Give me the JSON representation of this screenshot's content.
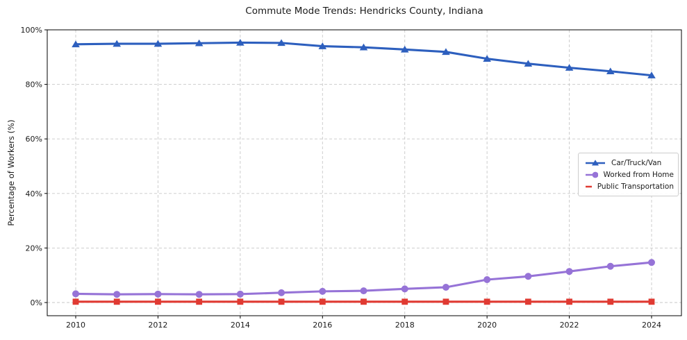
{
  "chart_data": {
    "type": "line",
    "title": "Commute Mode Trends: Hendricks County, Indiana",
    "xlabel": "",
    "ylabel": "Percentage of Workers (%)",
    "x": [
      2010,
      2011,
      2012,
      2013,
      2014,
      2015,
      2016,
      2017,
      2018,
      2019,
      2020,
      2021,
      2022,
      2023,
      2024
    ],
    "series": [
      {
        "name": "Car/Truck/Van",
        "color": "#2d5fbe",
        "marker": "triangle-up",
        "values": [
          94.7,
          94.9,
          94.9,
          95.1,
          95.3,
          95.2,
          94.0,
          93.6,
          92.8,
          91.9,
          89.4,
          87.6,
          86.1,
          84.8,
          83.3
        ]
      },
      {
        "name": "Worked from Home",
        "color": "#9673d7",
        "marker": "circle",
        "values": [
          3.2,
          3.0,
          3.1,
          3.0,
          3.1,
          3.6,
          4.1,
          4.3,
          5.0,
          5.6,
          8.4,
          9.6,
          11.4,
          13.3,
          14.7
        ]
      },
      {
        "name": "Public Transportation",
        "color": "#e03a32",
        "marker": "square",
        "values": [
          0.3,
          0.3,
          0.3,
          0.3,
          0.3,
          0.3,
          0.3,
          0.3,
          0.3,
          0.3,
          0.3,
          0.3,
          0.3,
          0.3,
          0.3
        ]
      }
    ],
    "xticks": [
      2010,
      2012,
      2014,
      2016,
      2018,
      2020,
      2022,
      2024
    ],
    "xtick_labels": [
      "2010",
      "2012",
      "2014",
      "2016",
      "2018",
      "2020",
      "2022",
      "2024"
    ],
    "yticks": [
      0,
      20,
      40,
      60,
      80,
      100
    ],
    "ytick_labels": [
      "0%",
      "20%",
      "40%",
      "60%",
      "80%",
      "100%"
    ],
    "ylim": [
      -5,
      100
    ],
    "xlim": [
      2009.3,
      2024.7
    ],
    "grid": true,
    "grid_style": "dashed",
    "grid_color": "#c7c7c7",
    "spine_color": "#000000",
    "background_color": "#ffffff",
    "legend_position": "center-right"
  }
}
